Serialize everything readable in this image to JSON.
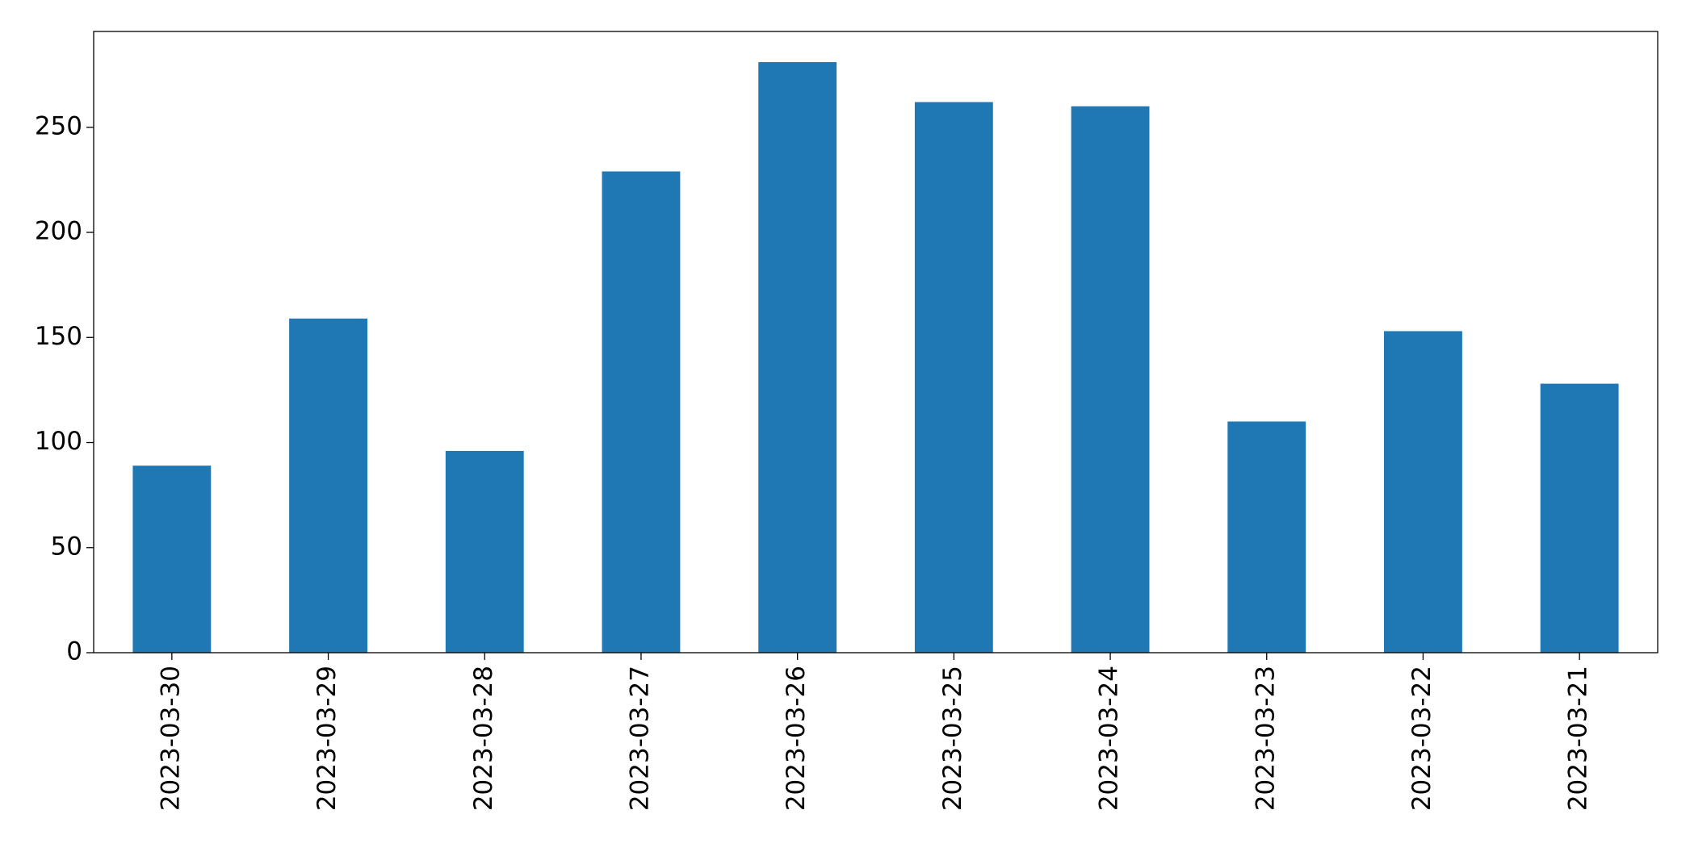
{
  "chart_data": {
    "type": "bar",
    "categories": [
      "2023-03-30",
      "2023-03-29",
      "2023-03-28",
      "2023-03-27",
      "2023-03-26",
      "2023-03-25",
      "2023-03-24",
      "2023-03-23",
      "2023-03-22",
      "2023-03-21"
    ],
    "values": [
      89,
      159,
      96,
      229,
      281,
      262,
      260,
      110,
      153,
      128
    ],
    "color": "#1f77b4",
    "ylim": [
      0,
      295.6
    ],
    "yticks": [
      0,
      50,
      100,
      150,
      200,
      250
    ],
    "grid": false
  }
}
